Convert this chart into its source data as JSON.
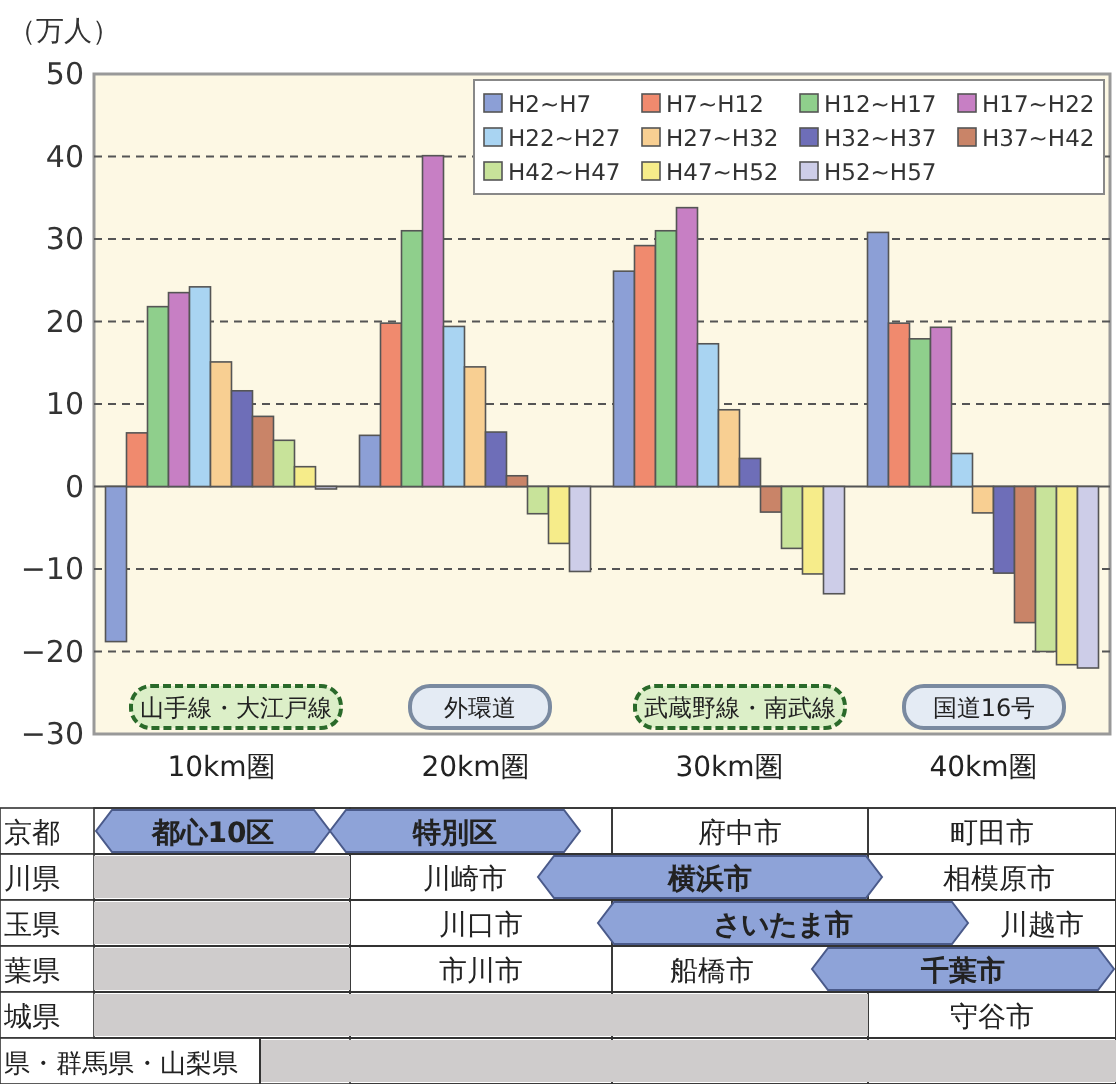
{
  "chart_data": {
    "type": "bar",
    "ylabel": "（万人）",
    "categories": [
      "10km圏",
      "20km圏",
      "30km圏",
      "40km圏"
    ],
    "series": [
      {
        "name": "H2~H7",
        "color": "#8c9fd6",
        "values": [
          -18.8,
          6.2,
          26.1,
          30.8
        ]
      },
      {
        "name": "H7~H12",
        "color": "#f08a6e",
        "values": [
          6.5,
          19.8,
          29.2,
          19.8
        ]
      },
      {
        "name": "H12~H17",
        "color": "#8fcf8c",
        "values": [
          21.8,
          31.0,
          31.0,
          17.9
        ]
      },
      {
        "name": "H17~H22",
        "color": "#c77fc4",
        "values": [
          23.5,
          40.1,
          33.8,
          19.3
        ]
      },
      {
        "name": "H22~H27",
        "color": "#a9d4f2",
        "values": [
          24.2,
          19.4,
          17.3,
          4.0
        ]
      },
      {
        "name": "H27~H32",
        "color": "#f8cf92",
        "values": [
          15.1,
          14.5,
          9.3,
          -3.2
        ]
      },
      {
        "name": "H32~H37",
        "color": "#6e6eb8",
        "values": [
          11.6,
          6.6,
          3.4,
          -10.5
        ]
      },
      {
        "name": "H37~H42",
        "color": "#c98468",
        "values": [
          8.5,
          1.3,
          -3.1,
          -16.5
        ]
      },
      {
        "name": "H42~H47",
        "color": "#c8e39a",
        "values": [
          5.6,
          -3.3,
          -7.5,
          -20.0
        ]
      },
      {
        "name": "H47~H52",
        "color": "#f6ec8a",
        "values": [
          2.4,
          -6.9,
          -10.6,
          -21.6
        ]
      },
      {
        "name": "H52~H57",
        "color": "#cdcde8",
        "values": [
          -0.3,
          -10.3,
          -13.0,
          -22.0
        ]
      }
    ],
    "ylim": [
      -30,
      50
    ],
    "yticks": [
      -30,
      -20,
      -10,
      0,
      10,
      20,
      30,
      40,
      50
    ],
    "grid": "y",
    "legend": "top right",
    "annotations": [
      "山手線・大江戸線",
      "外環道",
      "武蔵野線・南武線",
      "国道16号",
      "京都",
      "都心10区",
      "特別区",
      "府中市",
      "町田市",
      "川県",
      "川崎市",
      "横浜市",
      "相模原市",
      "玉県",
      "川口市",
      "さいたま市",
      "川越市",
      "葉県",
      "市川市",
      "船橋市",
      "千葉市",
      "城県",
      "守谷市",
      "県・群馬県・山梨県"
    ]
  }
}
